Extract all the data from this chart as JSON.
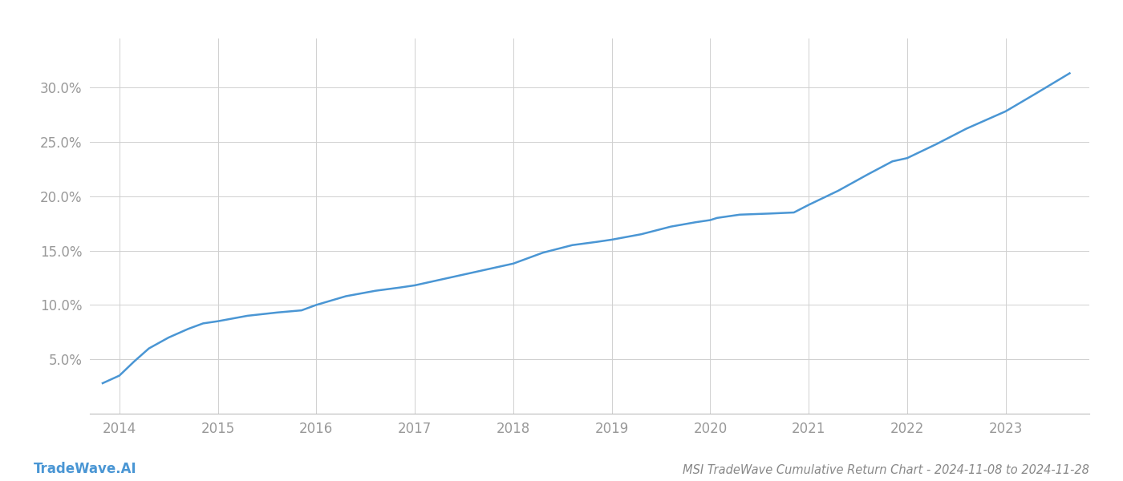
{
  "title": "MSI TradeWave Cumulative Return Chart - 2024-11-08 to 2024-11-28",
  "watermark": "TradeWave.AI",
  "x_years": [
    2014,
    2015,
    2016,
    2017,
    2018,
    2019,
    2020,
    2021,
    2022,
    2023
  ],
  "x_values": [
    2013.83,
    2014.0,
    2014.15,
    2014.3,
    2014.5,
    2014.7,
    2014.85,
    2015.0,
    2015.3,
    2015.6,
    2015.85,
    2016.0,
    2016.3,
    2016.6,
    2016.85,
    2017.0,
    2017.3,
    2017.6,
    2017.85,
    2018.0,
    2018.3,
    2018.6,
    2018.85,
    2019.0,
    2019.3,
    2019.6,
    2019.85,
    2020.0,
    2020.07,
    2020.3,
    2020.6,
    2020.85,
    2021.0,
    2021.3,
    2021.6,
    2021.85,
    2022.0,
    2022.3,
    2022.6,
    2022.85,
    2023.0,
    2023.3,
    2023.65
  ],
  "y_values": [
    0.028,
    0.035,
    0.048,
    0.06,
    0.07,
    0.078,
    0.083,
    0.085,
    0.09,
    0.093,
    0.095,
    0.1,
    0.108,
    0.113,
    0.116,
    0.118,
    0.124,
    0.13,
    0.135,
    0.138,
    0.148,
    0.155,
    0.158,
    0.16,
    0.165,
    0.172,
    0.176,
    0.178,
    0.18,
    0.183,
    0.184,
    0.185,
    0.192,
    0.205,
    0.22,
    0.232,
    0.235,
    0.248,
    0.262,
    0.272,
    0.278,
    0.294,
    0.313
  ],
  "line_color": "#4a96d4",
  "line_width": 1.8,
  "background_color": "#ffffff",
  "grid_color": "#d0d0d0",
  "tick_label_color": "#999999",
  "title_color": "#888888",
  "watermark_color": "#4a96d4",
  "ylim": [
    0.0,
    0.345
  ],
  "xlim": [
    2013.7,
    2023.85
  ],
  "yticks": [
    0.05,
    0.1,
    0.15,
    0.2,
    0.25,
    0.3
  ],
  "title_fontsize": 10.5,
  "tick_fontsize": 12,
  "watermark_fontsize": 12
}
